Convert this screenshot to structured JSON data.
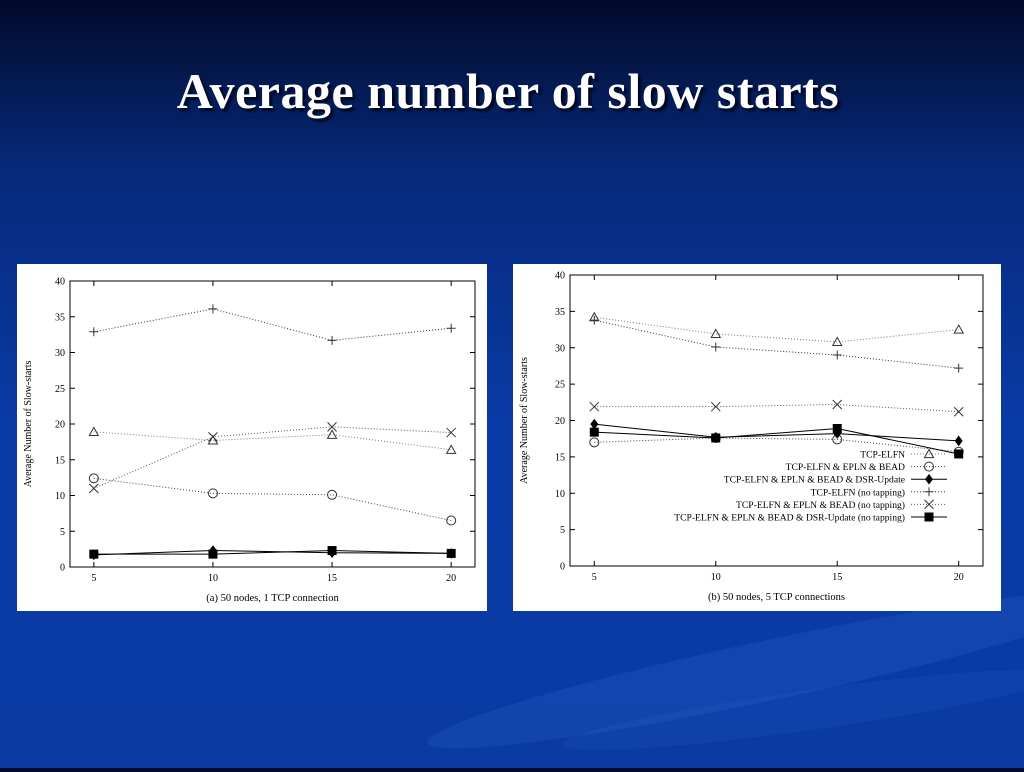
{
  "slide": {
    "title": "Average number of slow starts"
  },
  "colors": {
    "background": "#0a3aa6",
    "title": "#ffffff",
    "panel": "#ffffff",
    "ink": "#000000"
  },
  "series_styles": [
    {
      "marker": "triangle",
      "dash": "1,2",
      "color": "#777777"
    },
    {
      "marker": "circle",
      "dash": "1,2",
      "color": "#444444"
    },
    {
      "marker": "diamond",
      "dash": "",
      "color": "#000000"
    },
    {
      "marker": "plus",
      "dash": "1,2",
      "color": "#333333"
    },
    {
      "marker": "cross",
      "dash": "1,2",
      "color": "#555555"
    },
    {
      "marker": "square",
      "dash": "",
      "color": "#000000"
    }
  ],
  "chart_data": [
    {
      "type": "line",
      "caption": "(a) 50 nodes, 1 TCP connection",
      "ylabel": "Average Number of Slow-starts",
      "x": [
        5,
        10,
        15,
        20
      ],
      "xticks": [
        "5",
        "10",
        "15",
        "20"
      ],
      "yticks": [
        "0",
        "5",
        "10",
        "15",
        "20",
        "25",
        "30",
        "35",
        "40"
      ],
      "ylim": [
        0,
        40
      ],
      "legend": "none",
      "series": [
        {
          "values": [
            18.9,
            17.7,
            18.5,
            16.4
          ]
        },
        {
          "values": [
            12.4,
            10.3,
            10.1,
            6.5
          ]
        },
        {
          "values": [
            1.7,
            2.3,
            2.0,
            1.9
          ]
        },
        {
          "values": [
            32.9,
            36.1,
            31.7,
            33.4
          ]
        },
        {
          "values": [
            11.0,
            18.2,
            19.6,
            18.8
          ]
        },
        {
          "values": [
            1.8,
            1.8,
            2.3,
            1.9
          ]
        }
      ]
    },
    {
      "type": "line",
      "caption": "(b) 50 nodes, 5 TCP connections",
      "ylabel": "Average Number of Slow-starts",
      "x": [
        5,
        10,
        15,
        20
      ],
      "xticks": [
        "5",
        "10",
        "15",
        "20"
      ],
      "yticks": [
        "0",
        "5",
        "10",
        "15",
        "20",
        "25",
        "30",
        "35",
        "40"
      ],
      "ylim": [
        0,
        40
      ],
      "legend": "bottom-right",
      "series": [
        {
          "name": "TCP-ELFN",
          "values": [
            34.2,
            31.9,
            30.8,
            32.5
          ]
        },
        {
          "name": "TCP-ELFN & EPLN & BEAD",
          "values": [
            17.0,
            17.6,
            17.4,
            15.7
          ]
        },
        {
          "name": "TCP-ELFN & EPLN & BEAD & DSR-Update",
          "values": [
            19.5,
            17.7,
            18.2,
            17.2
          ]
        },
        {
          "name": "TCP-ELFN (no tapping)",
          "values": [
            33.8,
            30.1,
            29.0,
            27.2
          ]
        },
        {
          "name": "TCP-ELFN & EPLN & BEAD (no tapping)",
          "values": [
            21.9,
            21.9,
            22.2,
            21.2
          ]
        },
        {
          "name": "TCP-ELFN & EPLN & BEAD & DSR-Update (no tapping)",
          "values": [
            18.4,
            17.6,
            18.9,
            15.4
          ]
        }
      ]
    }
  ]
}
